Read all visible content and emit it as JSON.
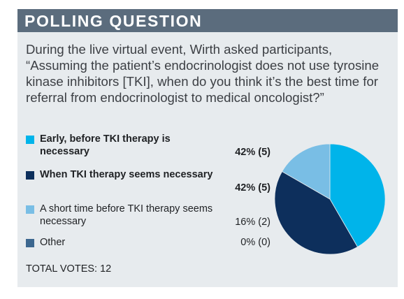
{
  "header": {
    "title": "POLLING QUESTION"
  },
  "question": "During the live virtual event, Wirth asked participants, “Assuming the patient’s endocrinologist does not use tyrosine kinase inhibitors [TKI], when do you think it’s the best time for referral from endocrinologist to medical oncologist?”",
  "legend": [
    {
      "label": "Early, before TKI therapy is necessary",
      "value": "42% (5)",
      "color": "#00b4ea",
      "bold": true
    },
    {
      "label": "When TKI therapy seems necessary",
      "value": "42% (5)",
      "color": "#0d2f5c",
      "bold": true
    },
    {
      "label": "A short time before TKI therapy seems necessary",
      "value": "16% (2)",
      "color": "#79bee5",
      "bold": false
    },
    {
      "label": "Other",
      "value": "0% (0)",
      "color": "#3c678f",
      "bold": false
    }
  ],
  "total": "TOTAL VOTES: 12",
  "chart_data": {
    "type": "pie",
    "categories": [
      "Early, before TKI therapy is necessary",
      "When TKI therapy seems necessary",
      "A short time before TKI therapy seems necessary",
      "Other"
    ],
    "values": [
      5,
      5,
      2,
      0
    ],
    "percentages": [
      42,
      42,
      16,
      0
    ],
    "colors": [
      "#00b4ea",
      "#0d2f5c",
      "#79bee5",
      "#3c678f"
    ]
  }
}
